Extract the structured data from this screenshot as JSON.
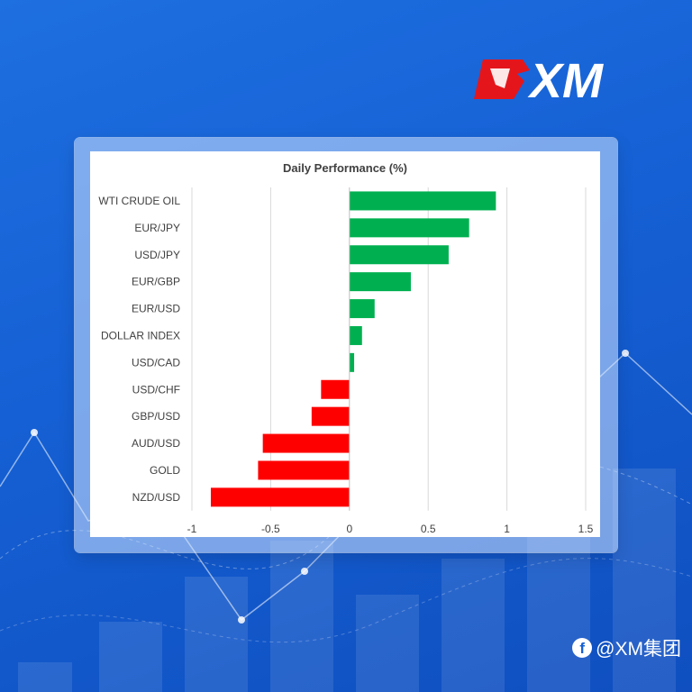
{
  "brand": {
    "logo_text": "XM",
    "watermark_text": "@XM集团",
    "watermark_icon": "facebook-icon"
  },
  "colors": {
    "positive": "#00b050",
    "negative": "#ff0000",
    "background": "#1560d4"
  },
  "chart_data": {
    "type": "bar",
    "orientation": "horizontal",
    "title": "Daily Performance (%)",
    "categories": [
      "WTI CRUDE OIL",
      "EUR/JPY",
      "USD/JPY",
      "EUR/GBP",
      "EUR/USD",
      "DOLLAR INDEX",
      "USD/CAD",
      "USD/CHF",
      "GBP/USD",
      "AUD/USD",
      "GOLD",
      "NZD/USD"
    ],
    "values": [
      0.93,
      0.76,
      0.63,
      0.39,
      0.16,
      0.08,
      0.03,
      -0.18,
      -0.24,
      -0.55,
      -0.58,
      -0.88
    ],
    "xlim": [
      -1,
      1.5
    ],
    "xticks": [
      "-1",
      "-0.5",
      "0",
      "0.5",
      "1",
      "1.5"
    ],
    "xtick_values": [
      -1,
      -0.5,
      0,
      0.5,
      1,
      1.5
    ],
    "grid": true,
    "legend": "none"
  }
}
